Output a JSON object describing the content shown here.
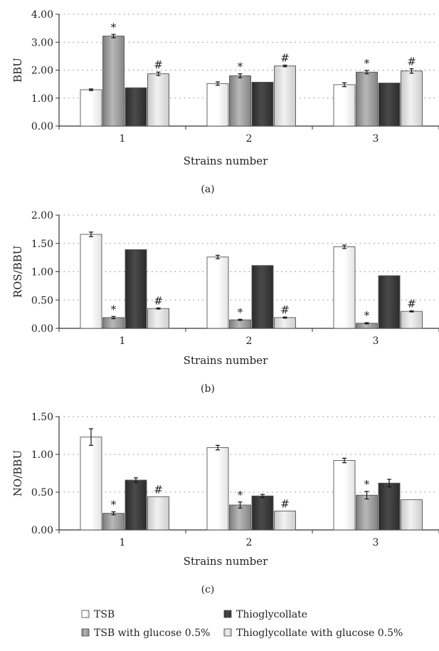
{
  "chart_data": [
    {
      "type": "bar",
      "panel_label": "(a)",
      "ylabel": "BBU",
      "xlabel": "Strains number",
      "ylim": [
        0,
        4
      ],
      "yticks": [
        "0.00",
        "1.00",
        "2.00",
        "3.00",
        "4.00"
      ],
      "categories": [
        "1",
        "2",
        "3"
      ],
      "grid": "dotted horizontal",
      "series": [
        {
          "name": "TSB",
          "values": [
            1.3,
            1.52,
            1.48
          ],
          "errors": [
            0.03,
            0.06,
            0.07
          ],
          "markers": [
            "",
            "",
            ""
          ]
        },
        {
          "name": "TSB with glucose 0.5%",
          "values": [
            3.22,
            1.8,
            1.93
          ],
          "errors": [
            0.06,
            0.07,
            0.06
          ],
          "markers": [
            "*",
            "*",
            "*"
          ]
        },
        {
          "name": "Thioglycollate",
          "values": [
            1.37,
            1.57,
            1.54
          ],
          "errors": [
            0,
            0,
            0
          ],
          "markers": [
            "",
            "",
            ""
          ]
        },
        {
          "name": "Thioglycollate with glucose 0.5%",
          "values": [
            1.87,
            2.15,
            1.97
          ],
          "errors": [
            0.06,
            0.03,
            0.08
          ],
          "markers": [
            "#",
            "#",
            "#"
          ]
        }
      ]
    },
    {
      "type": "bar",
      "panel_label": "(b)",
      "ylabel": "ROS/BBU",
      "xlabel": "Strains number",
      "ylim": [
        0,
        2
      ],
      "yticks": [
        "0.00",
        "0.50",
        "1.00",
        "1.50",
        "2.00"
      ],
      "categories": [
        "1",
        "2",
        "3"
      ],
      "grid": "dotted horizontal",
      "series": [
        {
          "name": "TSB",
          "values": [
            1.66,
            1.26,
            1.44
          ],
          "errors": [
            0.04,
            0.03,
            0.03
          ],
          "markers": [
            "",
            "",
            ""
          ]
        },
        {
          "name": "TSB with glucose 0.5%",
          "values": [
            0.19,
            0.15,
            0.09
          ],
          "errors": [
            0.02,
            0.01,
            0.01
          ],
          "markers": [
            "*",
            "*",
            "*"
          ]
        },
        {
          "name": "Thioglycollate",
          "values": [
            1.39,
            1.11,
            0.93
          ],
          "errors": [
            0,
            0,
            0
          ],
          "markers": [
            "",
            "",
            ""
          ]
        },
        {
          "name": "Thioglycollate with glucose 0.5%",
          "values": [
            0.35,
            0.19,
            0.3
          ],
          "errors": [
            0.01,
            0.01,
            0.01
          ],
          "markers": [
            "#",
            "#",
            "#"
          ]
        }
      ]
    },
    {
      "type": "bar",
      "panel_label": "(c)",
      "ylabel": "NO/BBU",
      "xlabel": "Strains number",
      "ylim": [
        0,
        1.5
      ],
      "yticks": [
        "0.00",
        "0.50",
        "1.00",
        "1.50"
      ],
      "categories": [
        "1",
        "2",
        "3"
      ],
      "grid": "dotted horizontal",
      "series": [
        {
          "name": "TSB",
          "values": [
            1.23,
            1.09,
            0.92
          ],
          "errors": [
            0.11,
            0.03,
            0.03
          ],
          "markers": [
            "",
            "",
            ""
          ]
        },
        {
          "name": "TSB with glucose 0.5%",
          "values": [
            0.22,
            0.33,
            0.46
          ],
          "errors": [
            0.02,
            0.04,
            0.05
          ],
          "markers": [
            "*",
            "*",
            "*"
          ]
        },
        {
          "name": "Thioglycollate",
          "values": [
            0.66,
            0.45,
            0.62
          ],
          "errors": [
            0.03,
            0.02,
            0.05
          ],
          "markers": [
            "",
            "",
            ""
          ]
        },
        {
          "name": "Thioglycollate with glucose 0.5%",
          "values": [
            0.44,
            0.25,
            0.4
          ],
          "errors": [
            0,
            0,
            0
          ],
          "markers": [
            "#",
            "#",
            ""
          ]
        }
      ]
    }
  ],
  "legend": {
    "placement": "bottom",
    "items": [
      "TSB",
      "Thioglycollate",
      "TSB with glucose 0.5%",
      "Thioglycollate with glucose 0.5%"
    ]
  },
  "colors": {
    "tsb": "#ffffff",
    "tsb_glucose": "#9e9e9e",
    "thioglycollate": "#3a3a3a",
    "thioglycollate_glucose": "#d9d9d9",
    "outline": "#555555"
  }
}
